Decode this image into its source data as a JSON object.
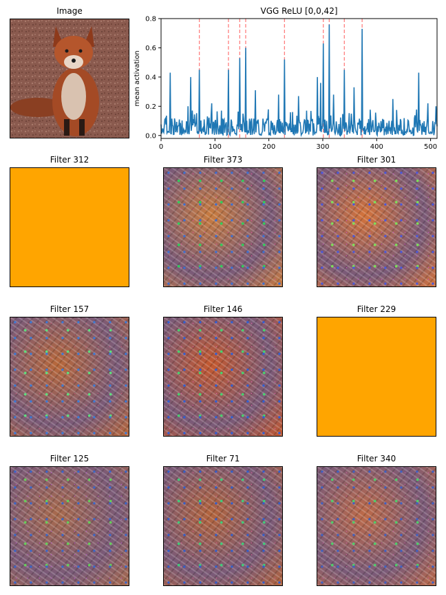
{
  "image_panel": {
    "title": "Image"
  },
  "chart_data": {
    "type": "line",
    "title": "VGG ReLU [0,0,42]",
    "xlabel": "",
    "ylabel": "mean activation",
    "xlim": [
      0,
      512
    ],
    "ylim": [
      -0.02,
      0.8
    ],
    "xticks": [
      0,
      100,
      200,
      300,
      400,
      500
    ],
    "yticks": [
      0.0,
      0.2,
      0.4,
      0.6,
      0.8
    ],
    "ytick_labels": [
      "0.0",
      "0.2",
      "0.4",
      "0.6",
      "0.8"
    ],
    "series": [
      {
        "color": "#1f77b4",
        "baseline": 0.05,
        "peaks": [
          {
            "x": 17,
            "y": 0.43
          },
          {
            "x": 50,
            "y": 0.2
          },
          {
            "x": 55,
            "y": 0.4
          },
          {
            "x": 71,
            "y": 0.45
          },
          {
            "x": 94,
            "y": 0.22
          },
          {
            "x": 112,
            "y": 0.17
          },
          {
            "x": 125,
            "y": 0.45
          },
          {
            "x": 146,
            "y": 0.53
          },
          {
            "x": 157,
            "y": 0.6
          },
          {
            "x": 175,
            "y": 0.31
          },
          {
            "x": 218,
            "y": 0.28
          },
          {
            "x": 229,
            "y": 0.52
          },
          {
            "x": 255,
            "y": 0.27
          },
          {
            "x": 290,
            "y": 0.4
          },
          {
            "x": 296,
            "y": 0.36
          },
          {
            "x": 301,
            "y": 0.63
          },
          {
            "x": 312,
            "y": 0.76
          },
          {
            "x": 320,
            "y": 0.28
          },
          {
            "x": 340,
            "y": 0.45
          },
          {
            "x": 358,
            "y": 0.33
          },
          {
            "x": 373,
            "y": 0.73
          },
          {
            "x": 430,
            "y": 0.25
          },
          {
            "x": 478,
            "y": 0.43
          },
          {
            "x": 495,
            "y": 0.22
          },
          {
            "x": 510,
            "y": 0.2
          }
        ]
      }
    ],
    "highlight_x": [
      71,
      125,
      146,
      157,
      229,
      301,
      312,
      340,
      373
    ],
    "highlight_color": "#ff7f7f"
  },
  "filters": [
    {
      "label": "Filter 312",
      "blank": true,
      "fill": "#ffa500"
    },
    {
      "label": "Filter 373",
      "blank": false
    },
    {
      "label": "Filter 301",
      "blank": false
    },
    {
      "label": "Filter 157",
      "blank": false
    },
    {
      "label": "Filter 146",
      "blank": false
    },
    {
      "label": "Filter 229",
      "blank": true,
      "fill": "#ffa500"
    },
    {
      "label": "Filter 125",
      "blank": false
    },
    {
      "label": "Filter 71",
      "blank": false
    },
    {
      "label": "Filter 340",
      "blank": false
    }
  ]
}
